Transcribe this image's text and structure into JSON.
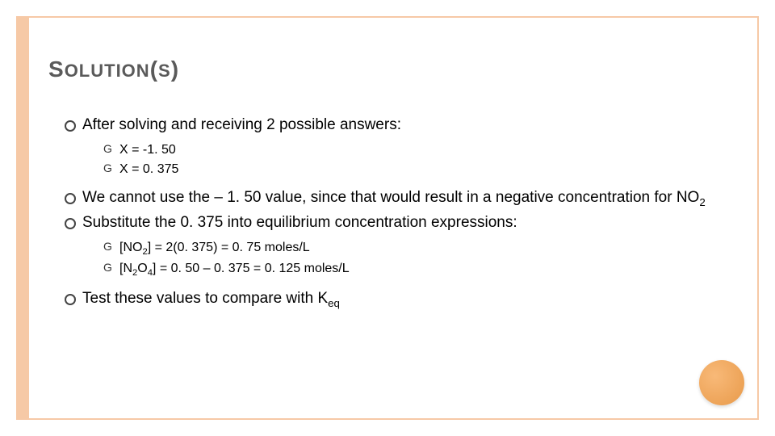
{
  "title": {
    "main": "S",
    "rest1": "OLUTION",
    "paren_open": "(",
    "s_small": "S",
    "paren_close": ")"
  },
  "bullets": {
    "b1": "After solving and receiving 2 possible answers:",
    "b1_sub": {
      "s1": "X = -1. 50",
      "s2": "X = 0. 375"
    },
    "b2_pre": "We cannot use the – 1. 50 value, since that would result in a negative concentration for NO",
    "b2_sub2": "2",
    "b3": "Substitute the 0. 375 into equilibrium concentration expressions:",
    "b3_sub": {
      "s1_pre": "[NO",
      "s1_sub": "2",
      "s1_post": "] = 2(0. 375) = 0. 75 moles/L",
      "s2_pre": "[N",
      "s2_sub1": "2",
      "s2_mid": "O",
      "s2_sub2": "4",
      "s2_post": "] = 0. 50 – 0. 375 = 0. 125 moles/L"
    },
    "b4_pre": "Test these values to compare with K",
    "b4_sub": "eq"
  },
  "colors": {
    "border": "#f6c9a6",
    "stripe": "#f6c9a6",
    "title": "#5a5a5a",
    "text": "#000000",
    "circle_light": "#f8b978",
    "circle_dark": "#e89a4a",
    "background": "#ffffff"
  }
}
